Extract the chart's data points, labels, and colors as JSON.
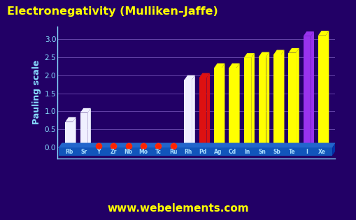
{
  "title": "Electronegativity (Mulliken–Jaffe)",
  "ylabel": "Pauling scale",
  "watermark": "www.webelements.com",
  "elements": [
    "Rb",
    "Sr",
    "Y",
    "Zr",
    "Nb",
    "Mo",
    "Tc",
    "Ru",
    "Rh",
    "Pd",
    "Ag",
    "Cd",
    "In",
    "Sn",
    "Sb",
    "Te",
    "I",
    "Xe"
  ],
  "heights": [
    0.71,
    0.96,
    0.0,
    0.0,
    0.0,
    0.0,
    0.0,
    0.0,
    1.87,
    1.93,
    2.2,
    2.2,
    2.48,
    2.51,
    2.57,
    2.62,
    3.08,
    3.1
  ],
  "bar_colors": [
    "#f0f0ff",
    "#f0f0ff",
    "#dd1111",
    "#dd1111",
    "#dd1111",
    "#dd1111",
    "#dd1111",
    "#dd1111",
    "#f0f0ff",
    "#dd1111",
    "#ffff00",
    "#ffff00",
    "#ffff00",
    "#ffff00",
    "#ffff00",
    "#ffff00",
    "#9933ee",
    "#ffff00"
  ],
  "dot_elements": [
    2,
    3,
    4,
    5,
    6,
    7
  ],
  "ylim": [
    0.0,
    3.3
  ],
  "yticks": [
    0.0,
    0.5,
    1.0,
    1.5,
    2.0,
    2.5,
    3.0
  ],
  "bg_color": "#220066",
  "title_color": "#ffff00",
  "axis_color": "#88ddff",
  "grid_color": "#6644aa",
  "watermark_color": "#ffff00",
  "label_color": "#aaddff",
  "platform_color": "#1155bb",
  "platform_top_color": "#2266cc",
  "platform_side_color": "#0033aa"
}
